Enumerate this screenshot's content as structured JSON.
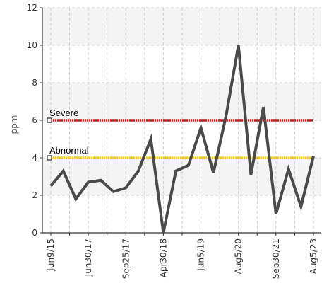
{
  "chart_data": {
    "type": "line",
    "title": "",
    "xlabel": "",
    "ylabel": "ppm",
    "ylim": [
      0,
      12
    ],
    "yticks": [
      0,
      2,
      4,
      6,
      8,
      10,
      12
    ],
    "x_tick_labels": [
      "Jun9/15",
      "Jun30/17",
      "Sep25/17",
      "Apr30/18",
      "Jun5/19",
      "Aug5/20",
      "Sep30/21",
      "Aug5/23"
    ],
    "grid": true,
    "series": [
      {
        "name": "",
        "color": "#4a4a4a",
        "values": [
          2.5,
          3.3,
          1.8,
          2.7,
          2.8,
          2.2,
          2.4,
          3.3,
          5.0,
          0.0,
          3.3,
          3.6,
          5.6,
          3.2,
          6.2,
          10.0,
          3.1,
          6.7,
          1.0,
          3.4,
          1.4,
          4.1
        ]
      }
    ],
    "reference_lines": [
      {
        "label": "Severe",
        "value": 6,
        "color": "#ff0000"
      },
      {
        "label": "Abnormal",
        "value": 4,
        "color": "#ffcc00"
      }
    ]
  }
}
